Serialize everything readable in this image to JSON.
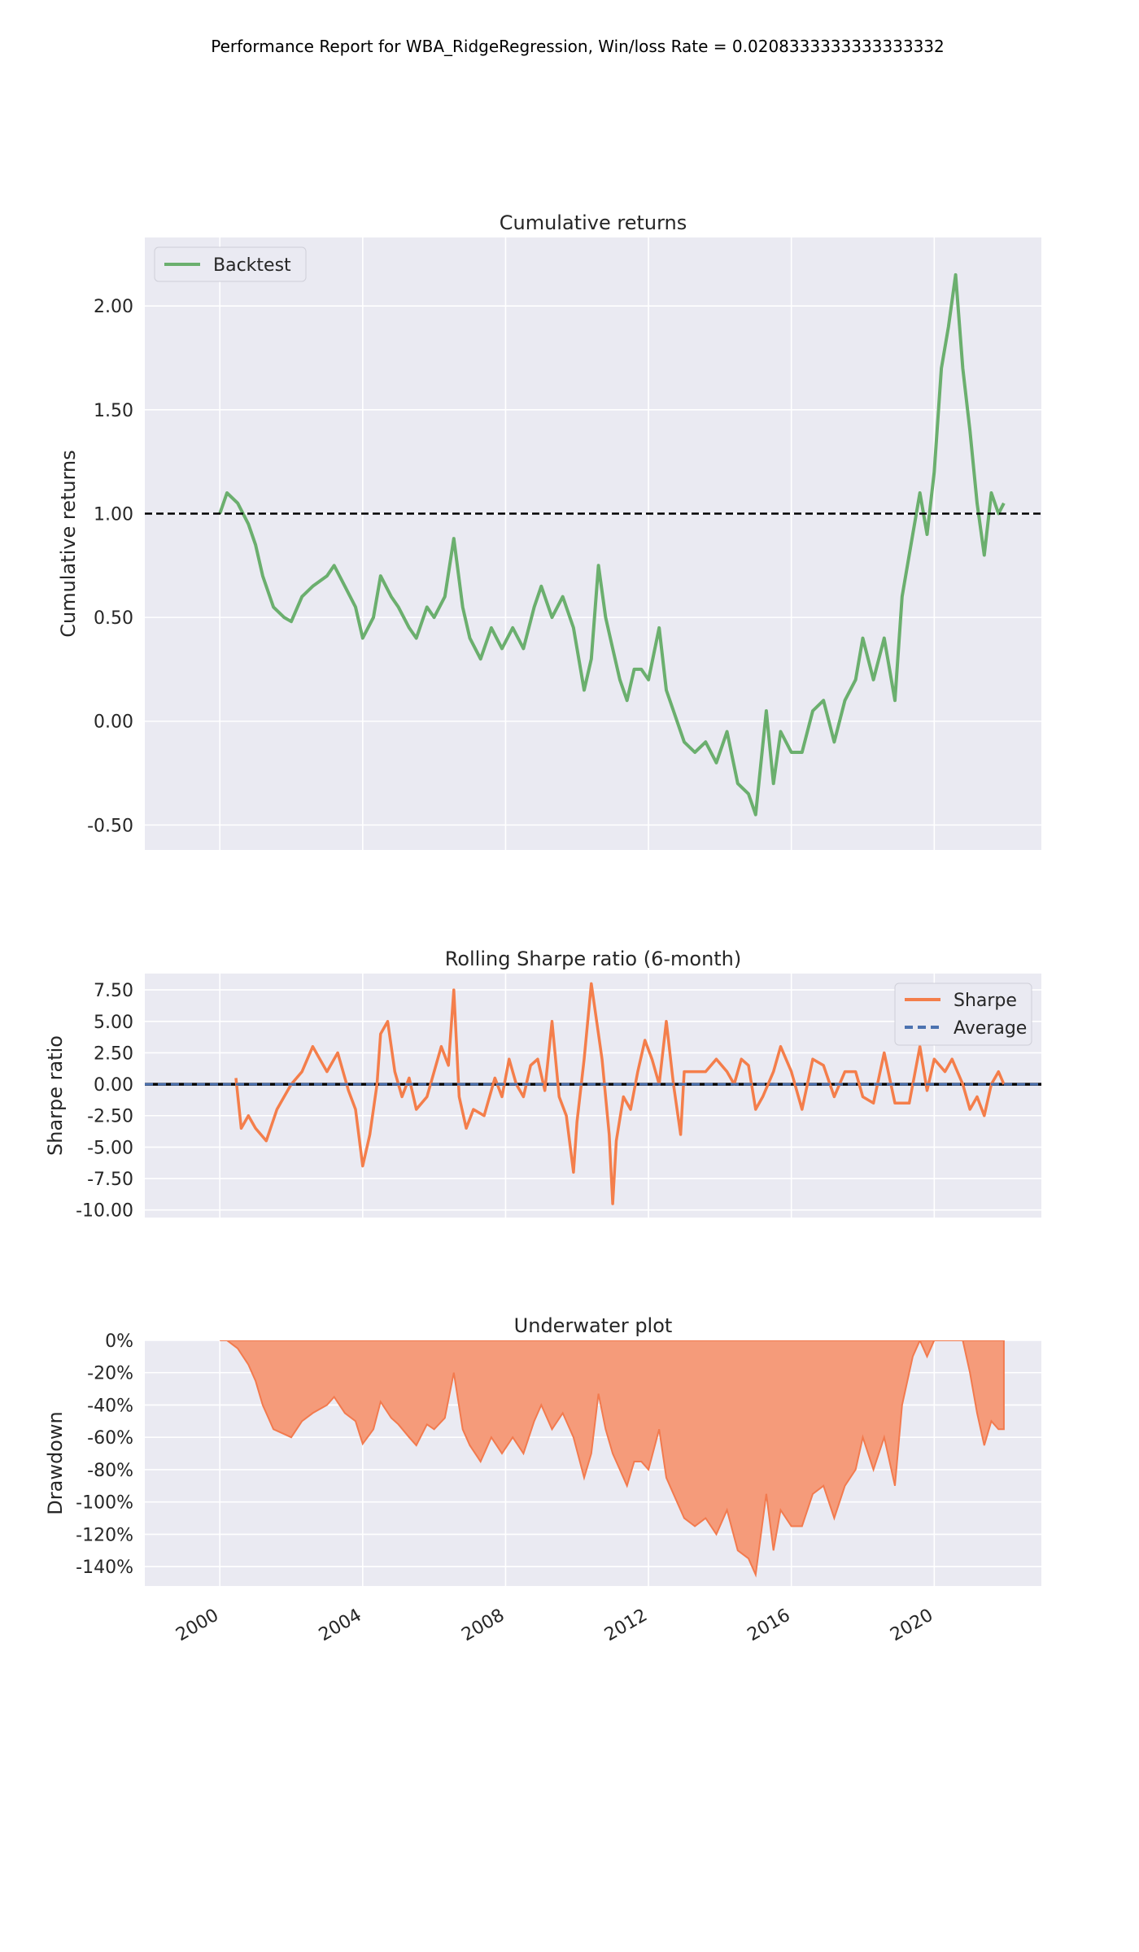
{
  "title": "Performance Report for WBA_RidgeRegression, Win/loss Rate = 0.0208333333333333332",
  "colors": {
    "background": "#EAEAF2",
    "grid": "#FFFFFF",
    "backtest": "#6BAF6E",
    "sharpe": "#F47E4B",
    "average": "#4C72B0",
    "underwater": "#F59B7A",
    "underwater_line": "#F27A4E",
    "reference_line": "#000000"
  },
  "chart_data": [
    {
      "type": "line",
      "title": "Cumulative returns",
      "xlabel": "",
      "ylabel": "Cumulative returns",
      "xlim": [
        1997.9,
        2023.0
      ],
      "ylim": [
        -0.62,
        2.33
      ],
      "grid": true,
      "legend_placement": "top-left",
      "yticks": [
        2.0,
        1.5,
        1.0,
        0.5,
        0.0,
        -0.5
      ],
      "ytick_labels": [
        "2.00",
        "1.50",
        "1.00",
        "0.50",
        "0.00",
        "-0.50"
      ],
      "xticks": [
        2000,
        2004,
        2008,
        2012,
        2016,
        2020
      ],
      "reference_line": {
        "y": 1.0,
        "style": "dashed"
      },
      "series": [
        {
          "name": "Backtest",
          "color": "#6BAF6E",
          "x": [
            2000.0,
            2000.2,
            2000.5,
            2000.8,
            2001.0,
            2001.2,
            2001.5,
            2001.8,
            2002.0,
            2002.3,
            2002.6,
            2003.0,
            2003.2,
            2003.5,
            2003.8,
            2004.0,
            2004.3,
            2004.5,
            2004.8,
            2005.0,
            2005.3,
            2005.5,
            2005.8,
            2006.0,
            2006.3,
            2006.55,
            2006.8,
            2007.0,
            2007.3,
            2007.6,
            2007.9,
            2008.2,
            2008.5,
            2008.8,
            2009.0,
            2009.3,
            2009.6,
            2009.9,
            2010.2,
            2010.4,
            2010.6,
            2010.8,
            2011.0,
            2011.2,
            2011.4,
            2011.6,
            2011.8,
            2012.0,
            2012.3,
            2012.5,
            2012.7,
            2013.0,
            2013.3,
            2013.6,
            2013.9,
            2014.2,
            2014.5,
            2014.8,
            2015.0,
            2015.3,
            2015.5,
            2015.7,
            2016.0,
            2016.3,
            2016.6,
            2016.9,
            2017.2,
            2017.5,
            2017.8,
            2018.0,
            2018.3,
            2018.6,
            2018.9,
            2019.1,
            2019.4,
            2019.6,
            2019.8,
            2020.0,
            2020.2,
            2020.4,
            2020.6,
            2020.8,
            2021.0,
            2021.2,
            2021.4,
            2021.6,
            2021.8,
            2021.95
          ],
          "values": [
            1.0,
            1.1,
            1.05,
            0.95,
            0.85,
            0.7,
            0.55,
            0.5,
            0.48,
            0.6,
            0.65,
            0.7,
            0.75,
            0.65,
            0.55,
            0.4,
            0.5,
            0.7,
            0.6,
            0.55,
            0.45,
            0.4,
            0.55,
            0.5,
            0.6,
            0.88,
            0.55,
            0.4,
            0.3,
            0.45,
            0.35,
            0.45,
            0.35,
            0.55,
            0.65,
            0.5,
            0.6,
            0.45,
            0.15,
            0.3,
            0.75,
            0.5,
            0.35,
            0.2,
            0.1,
            0.25,
            0.25,
            0.2,
            0.45,
            0.15,
            0.05,
            -0.1,
            -0.15,
            -0.1,
            -0.2,
            -0.05,
            -0.3,
            -0.35,
            -0.45,
            0.05,
            -0.3,
            -0.05,
            -0.15,
            -0.15,
            0.05,
            0.1,
            -0.1,
            0.1,
            0.2,
            0.4,
            0.2,
            0.4,
            0.1,
            0.6,
            0.9,
            1.1,
            0.9,
            1.2,
            1.7,
            1.9,
            2.15,
            1.7,
            1.4,
            1.05,
            0.8,
            1.1,
            1.0,
            1.05
          ]
        }
      ]
    },
    {
      "type": "line",
      "title": "Rolling Sharpe ratio (6-month)",
      "xlabel": "",
      "ylabel": "Sharpe ratio",
      "xlim": [
        1997.9,
        2023.0
      ],
      "ylim": [
        -10.6,
        8.8
      ],
      "grid": true,
      "legend_placement": "top-right",
      "yticks": [
        7.5,
        5.0,
        2.5,
        0.0,
        -2.5,
        -5.0,
        -7.5,
        -10.0
      ],
      "ytick_labels": [
        "7.50",
        "5.00",
        "2.50",
        "0.00",
        "-2.50",
        "-5.00",
        "-7.50",
        "-10.00"
      ],
      "xticks": [
        2000,
        2004,
        2008,
        2012,
        2016,
        2020
      ],
      "series": [
        {
          "name": "Sharpe",
          "color": "#F47E4B",
          "x": [
            2000.45,
            2000.6,
            2000.8,
            2001.0,
            2001.3,
            2001.6,
            2001.8,
            2002.0,
            2002.3,
            2002.6,
            2002.8,
            2003.0,
            2003.3,
            2003.6,
            2003.8,
            2004.0,
            2004.2,
            2004.4,
            2004.5,
            2004.7,
            2004.9,
            2005.1,
            2005.3,
            2005.5,
            2005.8,
            2006.0,
            2006.2,
            2006.4,
            2006.55,
            2006.7,
            2006.9,
            2007.1,
            2007.4,
            2007.7,
            2007.9,
            2008.1,
            2008.3,
            2008.5,
            2008.7,
            2008.9,
            2009.1,
            2009.3,
            2009.5,
            2009.7,
            2009.9,
            2010.0,
            2010.2,
            2010.4,
            2010.5,
            2010.7,
            2010.9,
            2011.0,
            2011.1,
            2011.3,
            2011.5,
            2011.7,
            2011.9,
            2012.1,
            2012.3,
            2012.5,
            2012.7,
            2012.9,
            2013.0,
            2013.3,
            2013.6,
            2013.9,
            2014.2,
            2014.4,
            2014.6,
            2014.8,
            2015.0,
            2015.2,
            2015.5,
            2015.7,
            2016.0,
            2016.3,
            2016.6,
            2016.9,
            2017.2,
            2017.5,
            2017.8,
            2018.0,
            2018.3,
            2018.6,
            2018.9,
            2019.0,
            2019.3,
            2019.6,
            2019.8,
            2020.0,
            2020.3,
            2020.5,
            2020.8,
            2021.0,
            2021.2,
            2021.4,
            2021.6,
            2021.8,
            2021.95
          ],
          "values": [
            0.5,
            -3.5,
            -2.5,
            -3.5,
            -4.5,
            -2.0,
            -1.0,
            0.0,
            1.0,
            3.0,
            2.0,
            1.0,
            2.5,
            -0.5,
            -2.0,
            -6.5,
            -4.0,
            0.0,
            4.0,
            5.0,
            1.0,
            -1.0,
            0.5,
            -2.0,
            -1.0,
            1.0,
            3.0,
            1.5,
            7.5,
            -1.0,
            -3.5,
            -2.0,
            -2.5,
            0.5,
            -1.0,
            2.0,
            0.0,
            -1.0,
            1.5,
            2.0,
            -0.5,
            5.0,
            -1.0,
            -2.5,
            -7.0,
            -3.0,
            2.0,
            8.0,
            6.0,
            2.0,
            -4.0,
            -9.5,
            -4.5,
            -1.0,
            -2.0,
            1.0,
            3.5,
            2.0,
            0.0,
            5.0,
            0.0,
            -4.0,
            1.0,
            1.0,
            1.0,
            2.0,
            1.0,
            0.0,
            2.0,
            1.5,
            -2.0,
            -1.0,
            1.0,
            3.0,
            1.0,
            -2.0,
            2.0,
            1.5,
            -1.0,
            1.0,
            1.0,
            -1.0,
            -1.5,
            2.5,
            -1.5,
            -1.5,
            -1.5,
            3.0,
            -0.5,
            2.0,
            1.0,
            2.0,
            0.0,
            -2.0,
            -1.0,
            -2.5,
            0.0,
            1.0,
            0.0
          ]
        },
        {
          "name": "Average",
          "color": "#4C72B0",
          "x": [
            1997.9,
            2023.0
          ],
          "values": [
            0.0,
            0.0
          ]
        }
      ]
    },
    {
      "type": "area",
      "title": "Underwater plot",
      "xlabel": "",
      "ylabel": "Drawdown",
      "xlim": [
        1997.9,
        2023.0
      ],
      "ylim": [
        -152,
        0
      ],
      "grid": true,
      "yticks": [
        0,
        -20,
        -40,
        -60,
        -80,
        -100,
        -120,
        -140
      ],
      "ytick_labels": [
        "0%",
        "-20%",
        "-40%",
        "-60%",
        "-80%",
        "-100%",
        "-120%",
        "-140%"
      ],
      "xticks": [
        2000,
        2004,
        2008,
        2012,
        2016,
        2020
      ],
      "xtick_labels": [
        "2000",
        "2004",
        "2008",
        "2012",
        "2016",
        "2020"
      ],
      "series": [
        {
          "name": "Drawdown",
          "color": "#F59B7A",
          "x": [
            2000.0,
            2000.2,
            2000.5,
            2000.8,
            2001.0,
            2001.2,
            2001.5,
            2001.8,
            2002.0,
            2002.3,
            2002.6,
            2003.0,
            2003.2,
            2003.5,
            2003.8,
            2004.0,
            2004.3,
            2004.5,
            2004.8,
            2005.0,
            2005.3,
            2005.5,
            2005.8,
            2006.0,
            2006.3,
            2006.55,
            2006.8,
            2007.0,
            2007.3,
            2007.6,
            2007.9,
            2008.2,
            2008.5,
            2008.8,
            2009.0,
            2009.3,
            2009.6,
            2009.9,
            2010.2,
            2010.4,
            2010.6,
            2010.8,
            2011.0,
            2011.2,
            2011.4,
            2011.6,
            2011.8,
            2012.0,
            2012.3,
            2012.5,
            2012.7,
            2013.0,
            2013.3,
            2013.6,
            2013.9,
            2014.2,
            2014.5,
            2014.8,
            2015.0,
            2015.3,
            2015.5,
            2015.7,
            2016.0,
            2016.3,
            2016.6,
            2016.9,
            2017.2,
            2017.5,
            2017.8,
            2018.0,
            2018.3,
            2018.6,
            2018.9,
            2019.1,
            2019.4,
            2019.6,
            2019.8,
            2020.0,
            2020.2,
            2020.4,
            2020.6,
            2020.8,
            2021.0,
            2021.2,
            2021.4,
            2021.6,
            2021.8,
            2021.95
          ],
          "values": [
            0,
            0,
            -5,
            -15,
            -25,
            -40,
            -55,
            -58,
            -60,
            -50,
            -45,
            -40,
            -35,
            -45,
            -50,
            -64,
            -55,
            -38,
            -48,
            -52,
            -60,
            -65,
            -52,
            -55,
            -48,
            -20,
            -55,
            -65,
            -75,
            -60,
            -70,
            -60,
            -70,
            -50,
            -40,
            -55,
            -45,
            -60,
            -85,
            -70,
            -33,
            -55,
            -70,
            -80,
            -90,
            -75,
            -75,
            -80,
            -55,
            -85,
            -95,
            -110,
            -115,
            -110,
            -120,
            -105,
            -130,
            -135,
            -145,
            -95,
            -130,
            -105,
            -115,
            -115,
            -95,
            -90,
            -110,
            -90,
            -80,
            -60,
            -80,
            -60,
            -90,
            -40,
            -10,
            0,
            -10,
            0,
            0,
            0,
            0,
            0,
            -20,
            -45,
            -65,
            -50,
            -55,
            -55
          ]
        }
      ]
    }
  ]
}
